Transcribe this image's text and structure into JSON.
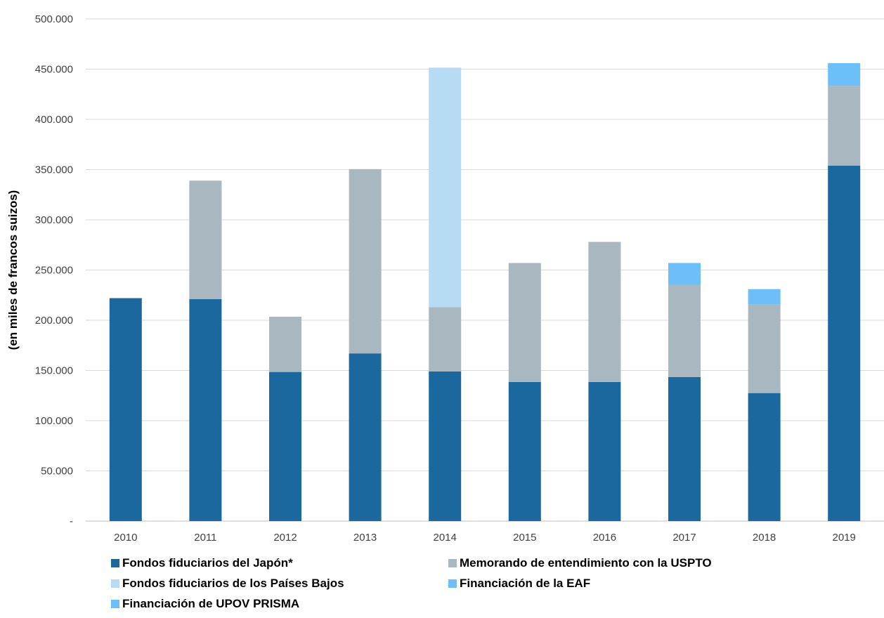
{
  "chart_data": {
    "type": "bar",
    "stacked": true,
    "categories": [
      "2010",
      "2011",
      "2012",
      "2013",
      "2014",
      "2015",
      "2016",
      "2017",
      "2018",
      "2019"
    ],
    "ylabel": "(en miles de francos suizos)",
    "ylim": [
      0,
      500000
    ],
    "yticks": [
      {
        "value": 0,
        "label": "-"
      },
      {
        "value": 50000,
        "label": "50.000"
      },
      {
        "value": 100000,
        "label": "100.000"
      },
      {
        "value": 150000,
        "label": "150.000"
      },
      {
        "value": 200000,
        "label": "200.000"
      },
      {
        "value": 250000,
        "label": "250.000"
      },
      {
        "value": 300000,
        "label": "300.000"
      },
      {
        "value": 350000,
        "label": "350.000"
      },
      {
        "value": 400000,
        "label": "400.000"
      },
      {
        "value": 450000,
        "label": "450.000"
      },
      {
        "value": 500000,
        "label": "500.000"
      }
    ],
    "grid": true,
    "legend_position": "bottom",
    "series": [
      {
        "name": "Fondos fiduciarios del Japón*",
        "color": "#1a689e",
        "values": [
          222000,
          221000,
          148500,
          167000,
          149000,
          138500,
          138500,
          143500,
          127500,
          354000
        ]
      },
      {
        "name": "Memorando de entendimiento con la USPTO",
        "color": "#a9b7c1",
        "values": [
          0,
          118000,
          55000,
          183500,
          64000,
          118500,
          139500,
          91500,
          88000,
          79500
        ]
      },
      {
        "name": "Fondos fiduciarios de los Países Bajos",
        "color": "#b7dbf3",
        "values": [
          0,
          0,
          0,
          0,
          238500,
          0,
          0,
          0,
          0,
          0
        ]
      },
      {
        "name": "Financiación de la EAF",
        "color": "#6cbff8",
        "values": [
          0,
          0,
          0,
          0,
          0,
          0,
          0,
          22000,
          15500,
          22500
        ]
      },
      {
        "name": "Financiación de UPOV PRISMA",
        "color": "#6cbff8",
        "values": [
          0,
          0,
          0,
          0,
          0,
          0,
          0,
          0,
          0,
          0
        ]
      }
    ]
  }
}
